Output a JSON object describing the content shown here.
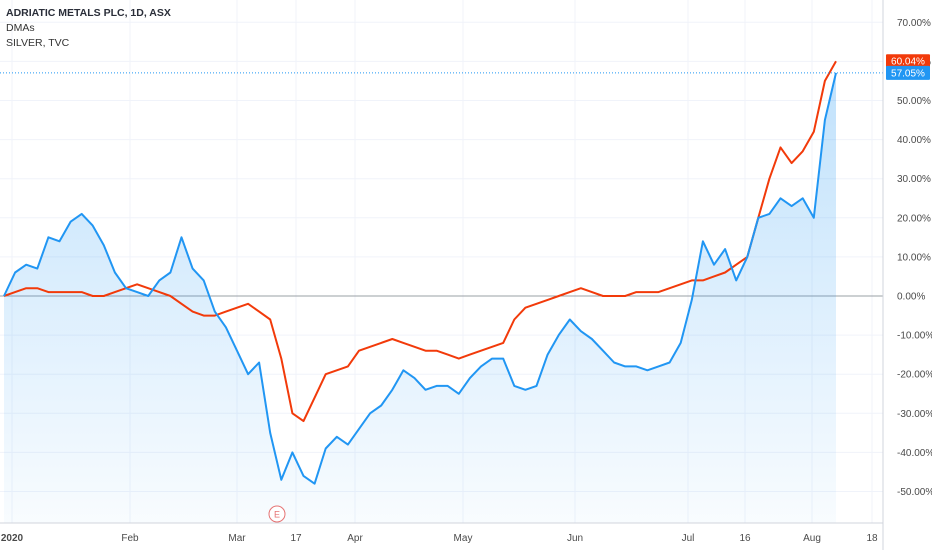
{
  "legend": {
    "symbol": "ADRIATIC METALS PLC, 1D, ASX",
    "indicator": "DMAs",
    "compare": "SILVER, TVC"
  },
  "event_marker": {
    "label": "E"
  },
  "colors": {
    "adriatic": "#2196f3",
    "silver": "#f23a0a",
    "zero_line": "#9aa0a6",
    "grid": "#f0f3fa",
    "axis_text": "#4a4a4a",
    "event": "#e57373"
  },
  "chart_data": {
    "type": "line",
    "x_ticks": [
      "2020",
      "Feb",
      "Mar",
      "17",
      "Apr",
      "May",
      "Jun",
      "Jul",
      "16",
      "Aug",
      "18"
    ],
    "y_ticks": [
      "70.00%",
      "60.00%",
      "50.00%",
      "40.00%",
      "30.00%",
      "20.00%",
      "10.00%",
      "0.00%",
      "-10.00%",
      "-20.00%",
      "-30.00%",
      "-40.00%",
      "-50.00%"
    ],
    "ylim": [
      -57,
      78
    ],
    "xlim": [
      0,
      150
    ],
    "grid": true,
    "last_value_labels": [
      {
        "series": "SILVER, TVC",
        "text": "60.04%",
        "value": 60.04
      },
      {
        "series": "ADRIATIC METALS PLC",
        "text": "57.05%",
        "value": 57.05
      }
    ],
    "series": [
      {
        "name": "ADRIATIC METALS PLC",
        "area": true,
        "x": [
          0,
          2,
          4,
          6,
          8,
          10,
          12,
          14,
          16,
          18,
          20,
          22,
          24,
          26,
          28,
          30,
          32,
          34,
          36,
          38,
          40,
          42,
          44,
          46,
          48,
          50,
          52,
          54,
          56,
          58,
          60,
          62,
          64,
          66,
          68,
          70,
          72,
          74,
          76,
          78,
          80,
          82,
          84,
          86,
          88,
          90,
          92,
          94,
          96,
          98,
          100,
          102,
          104,
          106,
          108,
          110,
          112,
          114,
          116,
          118,
          120,
          122,
          124,
          126,
          128,
          130,
          132,
          134,
          136,
          138,
          140,
          142,
          144,
          146,
          148,
          150
        ],
        "y": [
          0,
          6,
          8,
          7,
          15,
          14,
          19,
          21,
          18,
          13,
          6,
          2,
          1,
          0,
          4,
          6,
          15,
          7,
          4,
          -4,
          -8,
          -14,
          -20,
          -17,
          -35,
          -47,
          -40,
          -46,
          -48,
          -39,
          -36,
          -38,
          -34,
          -30,
          -28,
          -24,
          -19,
          -21,
          -24,
          -23,
          -23,
          -25,
          -21,
          -18,
          -16,
          -16,
          -23,
          -24,
          -23,
          -15,
          -10,
          -6,
          -9,
          -11,
          -14,
          -17,
          -18,
          -18,
          -19,
          -18,
          -17,
          -12,
          -1,
          14,
          8,
          12,
          4,
          10,
          20,
          21,
          25,
          23,
          25,
          20,
          45,
          57.05
        ]
      },
      {
        "name": "SILVER, TVC",
        "area": false,
        "x": [
          0,
          2,
          4,
          6,
          8,
          10,
          12,
          14,
          16,
          18,
          20,
          22,
          24,
          26,
          28,
          30,
          32,
          34,
          36,
          38,
          40,
          42,
          44,
          46,
          48,
          50,
          52,
          54,
          56,
          58,
          60,
          62,
          64,
          66,
          68,
          70,
          72,
          74,
          76,
          78,
          80,
          82,
          84,
          86,
          88,
          90,
          92,
          94,
          96,
          98,
          100,
          102,
          104,
          106,
          108,
          110,
          112,
          114,
          116,
          118,
          120,
          122,
          124,
          126,
          128,
          130,
          132,
          134,
          136,
          138,
          140,
          142,
          144,
          146,
          148,
          150
        ],
        "y": [
          0,
          1,
          2,
          2,
          1,
          1,
          1,
          1,
          0,
          0,
          1,
          2,
          3,
          2,
          1,
          0,
          -2,
          -4,
          -5,
          -5,
          -4,
          -3,
          -2,
          -4,
          -6,
          -16,
          -30,
          -32,
          -26,
          -20,
          -19,
          -18,
          -14,
          -13,
          -12,
          -11,
          -12,
          -13,
          -14,
          -14,
          -15,
          -16,
          -15,
          -14,
          -13,
          -12,
          -6,
          -3,
          -2,
          -1,
          0,
          1,
          2,
          1,
          0,
          0,
          0,
          1,
          1,
          1,
          2,
          3,
          4,
          4,
          5,
          6,
          8,
          10,
          20,
          30,
          38,
          34,
          37,
          42,
          55,
          60.04
        ]
      }
    ]
  }
}
